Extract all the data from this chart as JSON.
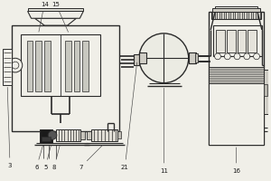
{
  "bg_color": "#f0efe8",
  "line_color": "#2a2a2a",
  "label_color": "#1a1a1a",
  "fig_width": 3.0,
  "fig_height": 2.0,
  "dpi": 100
}
